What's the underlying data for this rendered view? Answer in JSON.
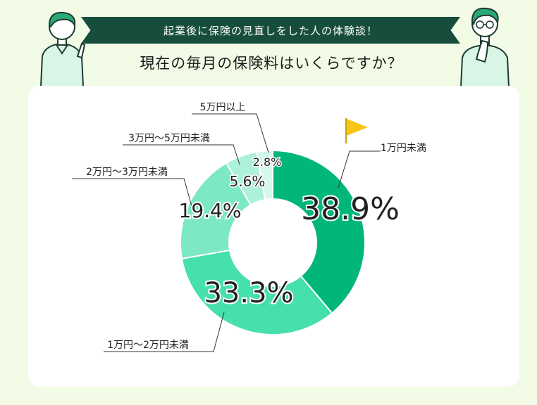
{
  "header": {
    "banner_text": "起業後に保険の見直しをした人の体験談！",
    "question": "現在の毎月の保険料はいくらですか？"
  },
  "colors": {
    "banner": "#174d3d",
    "background": "#f2fbe5",
    "flag": "#f5c518"
  },
  "chart_data": {
    "type": "pie",
    "donut": true,
    "categories": [
      "1万円未満",
      "1万円〜2万円未満",
      "2万円〜3万円未満",
      "3万円〜5万円未満",
      "5万円以上"
    ],
    "values": [
      38.9,
      33.3,
      19.4,
      5.6,
      2.8
    ],
    "value_labels": [
      "38.9%",
      "33.3%",
      "19.4%",
      "5.6%",
      "2.8%"
    ],
    "colors": [
      "#00b779",
      "#46dfae",
      "#7ce8c4",
      "#aef1da",
      "#d4f8ec"
    ]
  }
}
